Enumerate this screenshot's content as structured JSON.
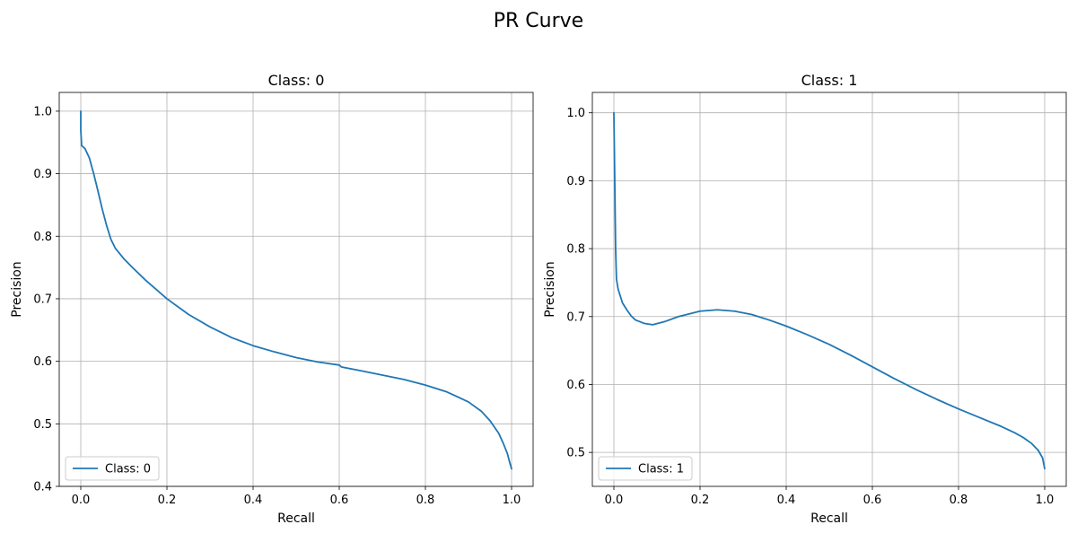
{
  "figure": {
    "suptitle": "PR Curve"
  },
  "colors": {
    "series": "#1f77b4",
    "grid": "#b0b0b0"
  },
  "chart_data": [
    {
      "type": "line",
      "title": "Class: 0",
      "xlabel": "Recall",
      "ylabel": "Precision",
      "xlim": [
        -0.05,
        1.05
      ],
      "ylim": [
        0.4,
        1.03
      ],
      "xticks": [
        0.0,
        0.2,
        0.4,
        0.6,
        0.8,
        1.0
      ],
      "yticks": [
        0.4,
        0.5,
        0.6,
        0.7,
        0.8,
        0.9,
        1.0
      ],
      "grid": true,
      "legend_position": "lower-left",
      "series": [
        {
          "name": "Class: 0",
          "x": [
            0.0,
            0.0,
            0.002,
            0.01,
            0.02,
            0.03,
            0.04,
            0.05,
            0.06,
            0.07,
            0.08,
            0.1,
            0.12,
            0.15,
            0.2,
            0.25,
            0.3,
            0.35,
            0.4,
            0.45,
            0.5,
            0.55,
            0.6,
            0.605,
            0.65,
            0.7,
            0.75,
            0.8,
            0.85,
            0.9,
            0.93,
            0.95,
            0.97,
            0.98,
            0.99,
            0.995,
            1.0
          ],
          "y": [
            1.0,
            0.97,
            0.945,
            0.94,
            0.925,
            0.9,
            0.872,
            0.843,
            0.817,
            0.795,
            0.781,
            0.764,
            0.75,
            0.73,
            0.7,
            0.675,
            0.655,
            0.638,
            0.625,
            0.615,
            0.606,
            0.599,
            0.594,
            0.591,
            0.585,
            0.578,
            0.571,
            0.562,
            0.551,
            0.535,
            0.52,
            0.505,
            0.485,
            0.47,
            0.453,
            0.44,
            0.428
          ]
        }
      ]
    },
    {
      "type": "line",
      "title": "Class: 1",
      "xlabel": "Recall",
      "ylabel": "Precision",
      "xlim": [
        -0.05,
        1.05
      ],
      "ylim": [
        0.45,
        1.03
      ],
      "xticks": [
        0.0,
        0.2,
        0.4,
        0.6,
        0.8,
        1.0
      ],
      "yticks": [
        0.5,
        0.6,
        0.7,
        0.8,
        0.9,
        1.0
      ],
      "grid": true,
      "legend_position": "lower-left",
      "series": [
        {
          "name": "Class: 1",
          "x": [
            0.0,
            0.002,
            0.004,
            0.006,
            0.01,
            0.02,
            0.03,
            0.04,
            0.05,
            0.07,
            0.09,
            0.12,
            0.15,
            0.2,
            0.24,
            0.28,
            0.32,
            0.36,
            0.4,
            0.45,
            0.5,
            0.55,
            0.6,
            0.65,
            0.7,
            0.75,
            0.8,
            0.85,
            0.9,
            0.93,
            0.95,
            0.97,
            0.985,
            0.995,
            1.0
          ],
          "y": [
            1.0,
            0.9,
            0.8,
            0.755,
            0.74,
            0.72,
            0.71,
            0.701,
            0.695,
            0.69,
            0.688,
            0.693,
            0.7,
            0.708,
            0.71,
            0.708,
            0.703,
            0.695,
            0.686,
            0.673,
            0.659,
            0.643,
            0.626,
            0.609,
            0.593,
            0.578,
            0.564,
            0.551,
            0.538,
            0.529,
            0.522,
            0.513,
            0.503,
            0.492,
            0.476
          ]
        }
      ]
    }
  ]
}
